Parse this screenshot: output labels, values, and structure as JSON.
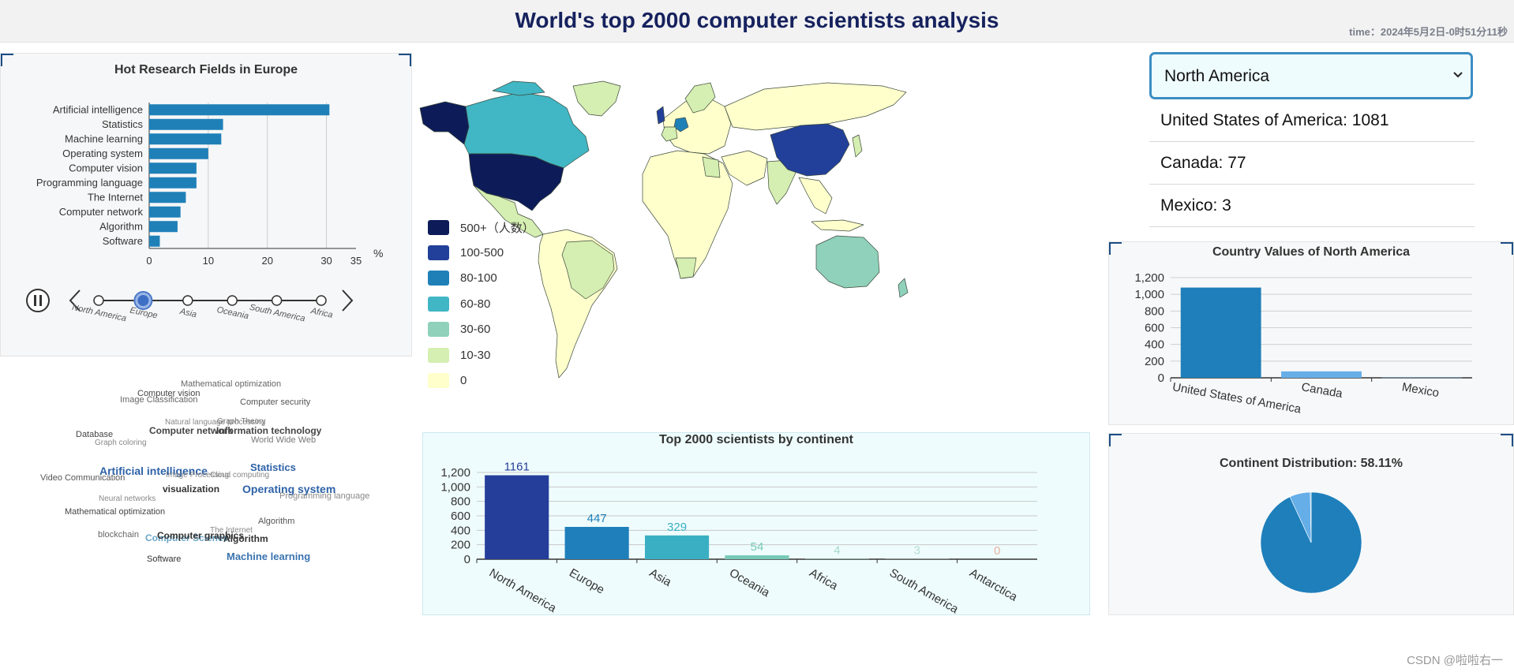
{
  "header": {
    "title": "World's top 2000 computer scientists analysis",
    "time": "time：2024年5月2日-0时51分11秒"
  },
  "europe_fields": {
    "title": "Hot Research Fields in Europe",
    "unit": "%",
    "xlim": [
      0,
      35
    ],
    "xticks": [
      "0",
      "10",
      "20",
      "30",
      "35"
    ],
    "chart_data": {
      "type": "bar",
      "orientation": "horizontal",
      "title": "Hot Research Fields in Europe",
      "categories": [
        "Artificial intelligence",
        "Statistics",
        "Machine learning",
        "Operating system",
        "Computer vision",
        "Programming language",
        "The Internet",
        "Computer network",
        "Algorithm",
        "Software"
      ],
      "values": [
        30.5,
        12.5,
        12.2,
        10,
        8,
        8,
        6.2,
        5.3,
        4.8,
        1.8
      ],
      "xlim": [
        0,
        35
      ],
      "color": "#1f80b8"
    },
    "timeline": {
      "items": [
        "North America",
        "Europe",
        "Asia",
        "Oceania",
        "South America",
        "Africa"
      ],
      "active_index": 1
    }
  },
  "word_cloud": [
    {
      "text": "Mathematical optimization",
      "x": 199,
      "y": 11,
      "size": 11,
      "color": "#666666"
    },
    {
      "text": "Computer vision",
      "x": 144,
      "y": 23,
      "size": 11,
      "color": "#444444"
    },
    {
      "text": "Image Classification",
      "x": 122,
      "y": 31,
      "size": 11,
      "color": "#666666"
    },
    {
      "text": "Computer security",
      "x": 274,
      "y": 34,
      "size": 11,
      "color": "#555555"
    },
    {
      "text": "Natural language processing",
      "x": 179,
      "y": 60,
      "size": 10,
      "color": "#888888"
    },
    {
      "text": "Graph Theory",
      "x": 245,
      "y": 59,
      "size": 10,
      "color": "#777777"
    },
    {
      "text": "Computer network",
      "x": 159,
      "y": 69,
      "size": 12,
      "color": "#444444"
    },
    {
      "text": "Information technology",
      "x": 244,
      "y": 69,
      "size": 12,
      "color": "#444444"
    },
    {
      "text": "Database",
      "x": 66,
      "y": 75,
      "size": 11,
      "color": "#444444"
    },
    {
      "text": "World Wide Web",
      "x": 288,
      "y": 82,
      "size": 11,
      "color": "#777777"
    },
    {
      "text": "Graph coloring",
      "x": 90,
      "y": 86,
      "size": 10,
      "color": "#888888"
    },
    {
      "text": "Statistics",
      "x": 287,
      "y": 115,
      "size": 13,
      "color": "#2d62a8"
    },
    {
      "text": "Artificial intelligence",
      "x": 96,
      "y": 119,
      "size": 14,
      "color": "#2d62a8"
    },
    {
      "text": "Video Communication",
      "x": 21,
      "y": 130,
      "size": 11,
      "color": "#555555"
    },
    {
      "text": "Image Processing",
      "x": 180,
      "y": 127,
      "size": 10,
      "color": "#888888"
    },
    {
      "text": "Cloud computing",
      "x": 236,
      "y": 127,
      "size": 10,
      "color": "#888888"
    },
    {
      "text": "Operating system",
      "x": 277,
      "y": 142,
      "size": 14,
      "color": "#2d62a8"
    },
    {
      "text": "visualization",
      "x": 176,
      "y": 143,
      "size": 12,
      "color": "#333333"
    },
    {
      "text": "Programming language",
      "x": 324,
      "y": 153,
      "size": 11,
      "color": "#888888"
    },
    {
      "text": "Neural networks",
      "x": 95,
      "y": 157,
      "size": 10,
      "color": "#888888"
    },
    {
      "text": "Mathematical optimization",
      "x": 52,
      "y": 173,
      "size": 11,
      "color": "#444444"
    },
    {
      "text": "Algorithm",
      "x": 297,
      "y": 185,
      "size": 11,
      "color": "#555555"
    },
    {
      "text": "The Internet",
      "x": 236,
      "y": 197,
      "size": 10,
      "color": "#888888"
    },
    {
      "text": "blockchain",
      "x": 94,
      "y": 202,
      "size": 11,
      "color": "#666666"
    },
    {
      "text": "Computer Science",
      "x": 154,
      "y": 205,
      "size": 12,
      "color": "#6aa6c8"
    },
    {
      "text": "Computer graphics",
      "x": 169,
      "y": 202,
      "size": 12,
      "color": "#333333"
    },
    {
      "text": "Algorithm",
      "x": 253,
      "y": 206,
      "size": 12,
      "color": "#333333"
    },
    {
      "text": "Machine learning",
      "x": 257,
      "y": 228,
      "size": 13,
      "color": "#3a73b0"
    },
    {
      "text": "Software",
      "x": 156,
      "y": 233,
      "size": 11,
      "color": "#333333"
    }
  ],
  "map": {
    "legend": [
      {
        "label": "500+（人数）",
        "color": "#0d1c58"
      },
      {
        "label": "100-500",
        "color": "#22409a"
      },
      {
        "label": "80-100",
        "color": "#1f80b8"
      },
      {
        "label": "60-80",
        "color": "#41b6c4"
      },
      {
        "label": "30-60",
        "color": "#8fd1bb"
      },
      {
        "label": "10-30",
        "color": "#d5eeb1"
      },
      {
        "label": "0",
        "color": "#ffffcc"
      }
    ]
  },
  "continent_chart": {
    "title": "Top 2000 scientists by continent",
    "yticks": [
      "1,200",
      "1,000",
      "800",
      "600",
      "400",
      "200",
      "0"
    ],
    "chart_data": {
      "type": "bar",
      "title": "Top 2000 scientists by continent",
      "categories": [
        "North America",
        "Europe",
        "Asia",
        "Oceania",
        "Africa",
        "South America",
        "Antarctica"
      ],
      "values": [
        1161,
        447,
        329,
        54,
        4,
        3,
        0
      ],
      "value_labels": [
        "1161",
        "447",
        "329",
        "54",
        "4",
        "3",
        "0"
      ],
      "colors": [
        "#253e9a",
        "#1e7fbb",
        "#3aafc3",
        "#77c9b7",
        "#a6d9cc",
        "#b6dcd1",
        "#e8b4a0"
      ],
      "ylim": [
        0,
        1200
      ]
    }
  },
  "selector": {
    "selected": "North America",
    "options": [
      "North America",
      "Europe",
      "Asia",
      "Oceania",
      "South America",
      "Africa"
    ],
    "countries": [
      {
        "label": "United States of America: 1081"
      },
      {
        "label": "Canada: 77"
      },
      {
        "label": "Mexico: 3"
      }
    ]
  },
  "country_chart": {
    "title": "Country Values of North America",
    "yticks": [
      "1,200",
      "1,000",
      "800",
      "600",
      "400",
      "200",
      "0"
    ],
    "chart_data": {
      "type": "bar",
      "title": "Country Values of North America",
      "categories": [
        "United States of America",
        "Canada",
        "Mexico"
      ],
      "values": [
        1081,
        77,
        3
      ],
      "colors": [
        "#1e7fbb",
        "#66aee8",
        "#66aee8"
      ],
      "ylim": [
        0,
        1200
      ]
    }
  },
  "pie_chart": {
    "title": "Continent Distribution: 58.11%",
    "chart_data": {
      "type": "pie",
      "title": "Continent Distribution: 58.11%",
      "slices": [
        {
          "name": "United States of America",
          "value": 1081,
          "color": "#1e7fbb"
        },
        {
          "name": "Canada",
          "value": 77,
          "color": "#66aee8"
        },
        {
          "name": "Mexico",
          "value": 3,
          "color": "#66aee8"
        }
      ]
    }
  },
  "watermark": "CSDN @啦啦右一"
}
